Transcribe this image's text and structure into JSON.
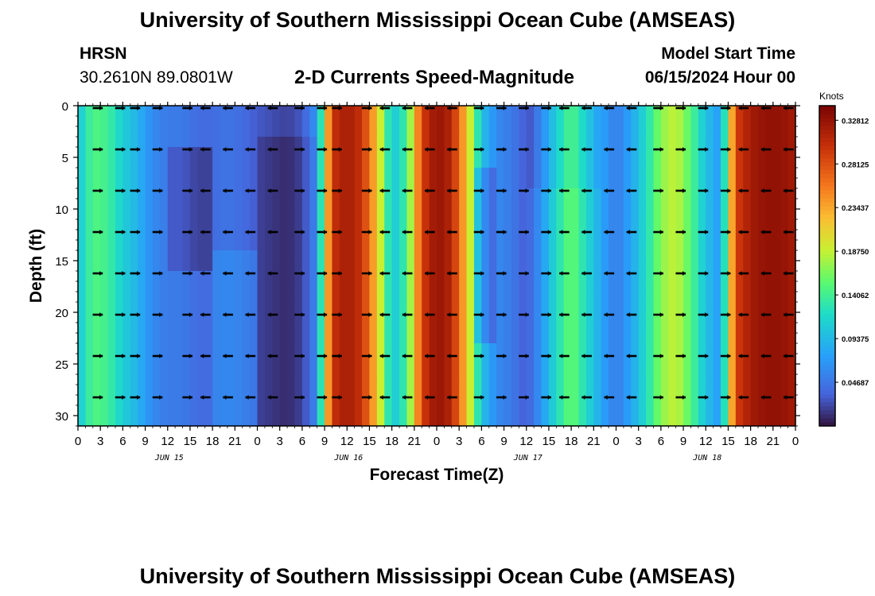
{
  "page": {
    "title": "University of Southern Mississippi Ocean Cube (AMSEAS)",
    "footer_title": "University of Southern Mississippi Ocean Cube (AMSEAS)",
    "station": "HRSN",
    "coords": "30.2610N  89.0801W",
    "plot_title": "2-D Currents Speed-Magnitude",
    "model_start_label": "Model Start Time",
    "model_start_value": "06/15/2024 Hour 00"
  },
  "chart_data": {
    "type": "heatmap",
    "title": "2-D Currents Speed-Magnitude",
    "xlabel": "Forecast Time(Z)",
    "ylabel": "Depth (ft)",
    "xlim": [
      0,
      96
    ],
    "ylim": [
      31,
      0
    ],
    "x_ticks": [
      0,
      3,
      6,
      9,
      12,
      15,
      18,
      21,
      24,
      27,
      30,
      33,
      36,
      39,
      42,
      45,
      48,
      51,
      54,
      57,
      60,
      63,
      66,
      69,
      72,
      75,
      78,
      81,
      84,
      87,
      90,
      93,
      96
    ],
    "x_tick_labels": [
      "0",
      "3",
      "6",
      "9",
      "12",
      "15",
      "18",
      "21",
      "0",
      "3",
      "6",
      "9",
      "12",
      "15",
      "18",
      "21",
      "0",
      "3",
      "6",
      "9",
      "12",
      "15",
      "18",
      "21",
      "0",
      "3",
      "6",
      "9",
      "12",
      "15",
      "18",
      "21",
      "0"
    ],
    "y_ticks": [
      0,
      5,
      10,
      15,
      20,
      25,
      30
    ],
    "y_tick_labels": [
      "0",
      "5",
      "10",
      "15",
      "20",
      "25",
      "30"
    ],
    "date_labels": [
      {
        "x": 12,
        "label": "JUN 15"
      },
      {
        "x": 36,
        "label": "JUN 16"
      },
      {
        "x": 60,
        "label": "JUN 17"
      },
      {
        "x": 84,
        "label": "JUN 18"
      }
    ],
    "colorbar": {
      "unit": "Knots",
      "range": [
        0,
        0.34375
      ],
      "ticks": [
        0.046875,
        0.09375,
        0.140625,
        0.1875,
        0.234375,
        0.28125,
        0.328125
      ],
      "tick_labels": [
        "0.04687",
        "0.09375",
        "0.14062",
        "0.18750",
        "0.23437",
        "0.28125",
        "0.32812"
      ]
    },
    "speed_profile_hours": [
      0,
      2,
      4,
      6,
      8,
      10,
      12,
      14,
      16,
      18,
      20,
      22,
      24,
      26,
      28,
      30,
      32,
      34,
      36,
      38,
      40,
      42,
      44,
      46,
      48,
      50,
      52,
      54,
      56,
      58,
      60,
      62,
      64,
      66,
      68,
      70,
      72,
      74,
      76,
      78,
      80,
      82,
      84,
      86,
      88,
      90,
      92,
      94,
      96
    ],
    "speed_profile_knots": [
      0.1,
      0.15,
      0.14,
      0.11,
      0.09,
      0.06,
      0.05,
      0.05,
      0.04,
      0.04,
      0.045,
      0.04,
      0.03,
      0.025,
      0.02,
      0.03,
      0.07,
      0.3,
      0.32,
      0.3,
      0.22,
      0.1,
      0.14,
      0.29,
      0.33,
      0.31,
      0.22,
      0.1,
      0.06,
      0.05,
      0.03,
      0.07,
      0.12,
      0.16,
      0.12,
      0.08,
      0.05,
      0.08,
      0.12,
      0.17,
      0.19,
      0.15,
      0.1,
      0.07,
      0.29,
      0.32,
      0.33,
      0.33,
      0.32
    ],
    "vector_depths": [
      0,
      4,
      8,
      12,
      16,
      20,
      24,
      28
    ],
    "vector_hours": [
      3,
      6,
      8,
      11,
      15,
      18,
      21,
      24,
      27,
      30,
      33,
      35,
      39,
      42,
      45,
      48,
      51,
      54,
      57,
      60,
      63,
      66,
      69,
      72,
      75,
      78,
      81,
      84,
      87,
      90,
      93,
      96
    ],
    "vector_direction": "alternating east-west with tidal cycle"
  }
}
